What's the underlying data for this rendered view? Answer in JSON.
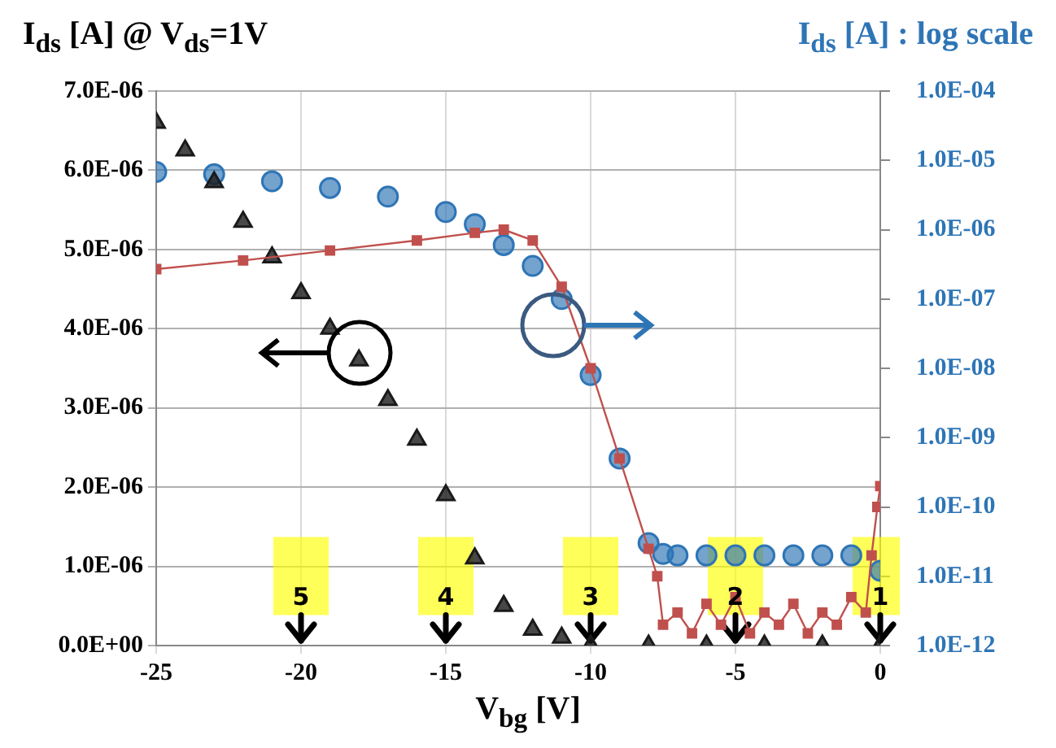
{
  "chart_data": {
    "type": "scatter",
    "ylabel": "I$_{ds}$ [A] @ V$_{ds}$=1V",
    "y2label": "I$_{ds}$ [A] : log scale",
    "xlabel": "V$_{bg}$ [V]",
    "xlim": [
      -25,
      0
    ],
    "xticks": [
      -25,
      -20,
      -15,
      -10,
      -5,
      0
    ],
    "ylim": [
      0,
      7e-06
    ],
    "yticks": [
      {
        "value": 0,
        "label": "0.0E+00"
      },
      {
        "value": 1e-06,
        "label": "1.0E-06"
      },
      {
        "value": 2e-06,
        "label": "2.0E-06"
      },
      {
        "value": 3e-06,
        "label": "3.0E-06"
      },
      {
        "value": 4e-06,
        "label": "4.0E-06"
      },
      {
        "value": 5e-06,
        "label": "5.0E-06"
      },
      {
        "value": 6e-06,
        "label": "6.0E-06"
      },
      {
        "value": 7e-06,
        "label": "7.0E-06"
      }
    ],
    "y2lim": [
      1e-12,
      0.0001
    ],
    "y2ticks": [
      {
        "value": 1e-12,
        "label": "1.0E-12"
      },
      {
        "value": 1e-11,
        "label": "1.0E-11"
      },
      {
        "value": 1e-10,
        "label": "1.0E-10"
      },
      {
        "value": 1e-09,
        "label": "1.0E-09"
      },
      {
        "value": 1e-08,
        "label": "1.0E-08"
      },
      {
        "value": 1e-07,
        "label": "1.0E-07"
      },
      {
        "value": 1e-06,
        "label": "1.0E-06"
      },
      {
        "value": 1e-05,
        "label": "1.0E-05"
      },
      {
        "value": 0.0001,
        "label": "1.0E-04"
      }
    ],
    "log": "y2",
    "grid": true,
    "legend": false,
    "series": [
      {
        "type": "line",
        "marker": "square",
        "line_style": "solid",
        "axis": "y2",
        "color": "#c0504d",
        "x": [
          -25,
          -22,
          -19,
          -16,
          -14,
          -13,
          -12,
          -11,
          -10,
          -9,
          -8,
          -7.7,
          -7.5,
          -7,
          -6.5,
          -6,
          -5.5,
          -5,
          -4.5,
          -4,
          -3.5,
          -3,
          -2.5,
          -2,
          -1.5,
          -1,
          -0.5,
          -0.3,
          -0.1,
          0
        ],
        "values": [
          2.7e-07,
          3.6e-07,
          5e-07,
          7e-07,
          9e-07,
          1e-06,
          7e-07,
          1.5e-07,
          1e-08,
          5e-10,
          2.5e-11,
          1e-11,
          2e-12,
          3e-12,
          1.5e-12,
          4e-12,
          2e-12,
          5e-12,
          1.5e-12,
          3e-12,
          2e-12,
          4e-12,
          1.5e-12,
          3e-12,
          2e-12,
          5e-12,
          3e-12,
          2e-11,
          1e-10,
          2e-10
        ]
      },
      {
        "type": "scatter",
        "marker": "triangle",
        "color": "#1a1a1a",
        "x": [
          -25,
          -24,
          -23,
          -22,
          -21,
          -20,
          -19,
          -18,
          -17,
          -16,
          -15,
          -14,
          -13,
          -12,
          -11,
          -10,
          -8,
          -6,
          -4,
          -2,
          0
        ],
        "values": [
          6.6e-06,
          6.25e-06,
          5.85e-06,
          5.35e-06,
          4.9e-06,
          4.45e-06,
          4e-06,
          3.6e-06,
          3.1e-06,
          2.6e-06,
          1.9e-06,
          1.1e-06,
          5e-07,
          2e-07,
          1e-07,
          0,
          0,
          0,
          0,
          0,
          0
        ]
      },
      {
        "type": "scatter",
        "marker": "circle",
        "axis": "y2",
        "color": "#2e75b6",
        "x": [
          -25,
          -23,
          -21,
          -19,
          -17,
          -15,
          -14,
          -13,
          -12,
          -11,
          -10,
          -9,
          -8,
          -7.5,
          -7,
          -6,
          -5,
          -4,
          -3,
          -2,
          -1,
          0
        ],
        "values": [
          6.8e-06,
          6.3e-06,
          5e-06,
          4e-06,
          3e-06,
          1.8e-06,
          1.2e-06,
          6e-07,
          3e-07,
          1e-07,
          8e-09,
          5e-10,
          3e-11,
          2.1e-11,
          2e-11,
          2e-11,
          2e-11,
          2e-11,
          2e-11,
          2e-11,
          2e-11,
          1.2e-11
        ]
      }
    ],
    "annotations": [
      {
        "text": "1",
        "x": 0
      },
      {
        "text": "2",
        "x": -5
      },
      {
        "text": "3",
        "x": -10
      },
      {
        "text": "4",
        "x": -15
      },
      {
        "text": "5",
        "x": -20
      }
    ]
  }
}
